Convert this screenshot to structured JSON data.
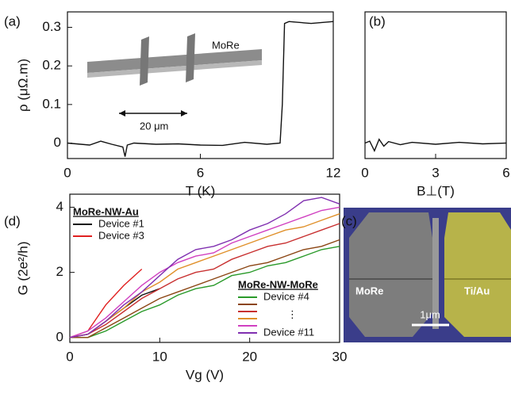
{
  "chart_data": [
    {
      "type": "line",
      "panel_label": "(a)",
      "x_label": "T (K)",
      "y_label": "ρ (μΩ.m)",
      "annotations": [
        "MoRe",
        "20 μm"
      ],
      "x": [
        0,
        1,
        1.5,
        2,
        2.5,
        2.6,
        2.7,
        3,
        4,
        5,
        6,
        7,
        8,
        9,
        9.6,
        9.7,
        9.8,
        10,
        11,
        12
      ],
      "series": [
        {
          "color": "#111111",
          "values": [
            0,
            -0.005,
            0.005,
            -0.003,
            -0.01,
            -0.035,
            -0.005,
            0,
            -0.003,
            -0.002,
            -0.005,
            -0.006,
            0.002,
            -0.003,
            0,
            0.1,
            0.31,
            0.315,
            0.31,
            0.315
          ]
        }
      ],
      "xlim": [
        0,
        12
      ],
      "xticks": [
        0,
        6,
        12
      ],
      "ylim": [
        -0.04,
        0.34
      ],
      "yticks": [
        0,
        0.1,
        0.2,
        0.3
      ]
    },
    {
      "type": "line",
      "panel_label": "(b)",
      "x_label": "B⊥(T)",
      "x": [
        0,
        0.2,
        0.4,
        0.6,
        0.8,
        1,
        1.5,
        2,
        3,
        4,
        5,
        6
      ],
      "series": [
        {
          "color": "#111111",
          "values": [
            0,
            0.005,
            -0.02,
            0.01,
            -0.008,
            0.004,
            -0.004,
            0.002,
            -0.003,
            0.002,
            -0.002,
            0
          ]
        }
      ],
      "xlim": [
        0,
        6
      ],
      "xticks": [
        0,
        3,
        6
      ],
      "ylim": [
        -0.04,
        0.34
      ]
    },
    {
      "type": "line",
      "panel_label": "(d)",
      "x_label": "Vg (V)",
      "y_label": "G (2e²/h)",
      "legend_titles": [
        "MoRe-NW-Au",
        "MoRe-NW-MoRe"
      ],
      "legend_ellipsis": "⋮",
      "x": [
        0,
        2,
        4,
        6,
        8,
        10,
        12,
        14,
        16,
        18,
        20,
        22,
        24,
        26,
        28,
        30
      ],
      "series": [
        {
          "name": "Device #1",
          "color": "#111111",
          "values": [
            0,
            0.1,
            0.5,
            0.9,
            1.3,
            1.5,
            null,
            null,
            null,
            null,
            null,
            null,
            null,
            null,
            null,
            null
          ]
        },
        {
          "name": "Device #3",
          "color": "#e02020",
          "values": [
            0,
            0.2,
            1.0,
            1.6,
            2.1,
            null,
            null,
            null,
            null,
            null,
            null,
            null,
            null,
            null,
            null,
            null
          ]
        },
        {
          "name": "Device #4",
          "color": "#2a9a2a",
          "values": [
            0,
            0,
            0.2,
            0.5,
            0.8,
            1.0,
            1.3,
            1.5,
            1.6,
            1.9,
            2.0,
            2.2,
            2.3,
            2.5,
            2.7,
            2.8
          ]
        },
        {
          "color": "#8b4513",
          "values": [
            0,
            0,
            0.3,
            0.6,
            0.9,
            1.2,
            1.4,
            1.6,
            1.8,
            2.0,
            2.2,
            2.3,
            2.5,
            2.7,
            2.8,
            3.0
          ]
        },
        {
          "color": "#c83030",
          "values": [
            0,
            0.1,
            0.4,
            0.8,
            1.2,
            1.5,
            1.8,
            2.0,
            2.1,
            2.4,
            2.6,
            2.8,
            2.9,
            3.1,
            3.3,
            3.5
          ]
        },
        {
          "color": "#e0902a",
          "values": [
            0,
            0.1,
            0.5,
            0.9,
            1.4,
            1.7,
            2.1,
            2.3,
            2.5,
            2.7,
            2.9,
            3.1,
            3.3,
            3.4,
            3.6,
            3.8
          ]
        },
        {
          "color": "#d040c0",
          "values": [
            0,
            0.2,
            0.6,
            1.1,
            1.6,
            2.0,
            2.3,
            2.5,
            2.6,
            2.9,
            3.1,
            3.3,
            3.5,
            3.7,
            3.9,
            4.0
          ]
        },
        {
          "name": "Device #11",
          "color": "#8030b0",
          "values": [
            0,
            0.1,
            0.5,
            1.0,
            1.4,
            1.9,
            2.4,
            2.7,
            2.8,
            3.0,
            3.3,
            3.5,
            3.8,
            4.2,
            4.3,
            4.1
          ]
        }
      ],
      "xlim": [
        0,
        30
      ],
      "xticks": [
        0,
        10,
        20,
        30
      ],
      "ylim": [
        -0.15,
        4.4
      ],
      "yticks": [
        0,
        2,
        4
      ]
    }
  ],
  "image_c": {
    "panel_label": "(c)",
    "left_label": "MoRe",
    "right_label": "Ti/Au",
    "scale_bar": "1μm"
  }
}
